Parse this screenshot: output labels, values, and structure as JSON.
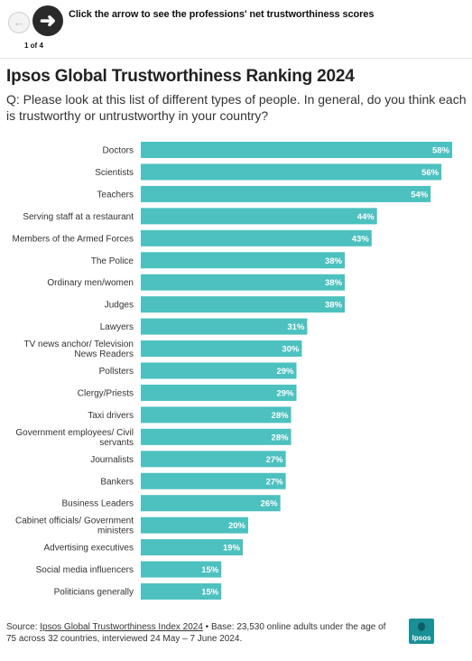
{
  "nav": {
    "prev_icon": "arrow-left-icon",
    "next_icon": "arrow-right-icon",
    "hint": "Click the arrow to see the professions' net trustworthiness scores",
    "page_count": "1 of 4"
  },
  "title": "Ipsos Global Trustworthiness Ranking 2024",
  "subtitle": "Q: Please look at this list of different types of people. In general, do you think each is trustworthy or untrustworthy in your country?",
  "footer": {
    "source_prefix": "Source: ",
    "source_link": "Ipsos Global Trustworthiness Index 2024",
    "base_text": " • Base: 23,530 online adults under the age of 75 across 32 countries, interviewed 24 May – 7 June 2024.",
    "logo_text": "Ipsos"
  },
  "colors": {
    "bar": "#4cc1bf",
    "logo": "#1a8f96"
  },
  "chart_data": {
    "type": "bar",
    "orientation": "horizontal",
    "categories": [
      [
        "Doctors"
      ],
      [
        "Scientists"
      ],
      [
        "Teachers"
      ],
      [
        "Serving staff at a restaurant"
      ],
      [
        "Members of the Armed Forces"
      ],
      [
        "The Police"
      ],
      [
        "Ordinary men/women"
      ],
      [
        "Judges"
      ],
      [
        "Lawyers"
      ],
      [
        "TV news anchor/ Television",
        "News Readers"
      ],
      [
        "Pollsters"
      ],
      [
        "Clergy/Priests"
      ],
      [
        "Taxi drivers"
      ],
      [
        "Government employees/ Civil",
        "servants"
      ],
      [
        "Journalists"
      ],
      [
        "Bankers"
      ],
      [
        "Business Leaders"
      ],
      [
        "Cabinet officials/ Government",
        "ministers"
      ],
      [
        "Advertising executives"
      ],
      [
        "Social media influencers"
      ],
      [
        "Politicians generally"
      ]
    ],
    "values": [
      58,
      56,
      54,
      44,
      43,
      38,
      38,
      38,
      31,
      30,
      29,
      29,
      28,
      28,
      27,
      27,
      26,
      20,
      19,
      15,
      15
    ],
    "value_labels": [
      "58%",
      "56%",
      "54%",
      "44%",
      "43%",
      "38%",
      "38%",
      "38%",
      "31%",
      "30%",
      "29%",
      "29%",
      "28%",
      "28%",
      "27%",
      "27%",
      "26%",
      "20%",
      "19%",
      "15%",
      "15%"
    ],
    "xlim": [
      0,
      58
    ],
    "grid": false,
    "legend": "none"
  }
}
